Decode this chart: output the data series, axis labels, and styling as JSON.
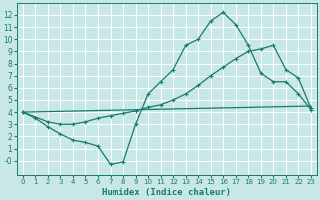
{
  "xlabel": "Humidex (Indice chaleur)",
  "background_color": "#c8e8e8",
  "grid_color": "#ffffff",
  "line_color": "#1a7a6e",
  "xlim": [
    -0.5,
    23.5
  ],
  "ylim": [
    -1.2,
    13
  ],
  "yticks": [
    0,
    1,
    2,
    3,
    4,
    5,
    6,
    7,
    8,
    9,
    10,
    11,
    12
  ],
  "ytick_labels": [
    "-0",
    "1",
    "2",
    "3",
    "4",
    "5",
    "6",
    "7",
    "8",
    "9",
    "10",
    "11",
    "12"
  ],
  "xticks": [
    0,
    1,
    2,
    3,
    4,
    5,
    6,
    7,
    8,
    9,
    10,
    11,
    12,
    13,
    14,
    15,
    16,
    17,
    18,
    19,
    20,
    21,
    22,
    23
  ],
  "line1_x": [
    0,
    1,
    2,
    3,
    4,
    5,
    6,
    7,
    8,
    9,
    10,
    11,
    12,
    13,
    14,
    15,
    16,
    17,
    18,
    19,
    20,
    21,
    22,
    23
  ],
  "line1_y": [
    4.0,
    3.5,
    2.8,
    2.2,
    1.7,
    1.5,
    1.2,
    -0.3,
    -0.1,
    3.0,
    5.5,
    6.5,
    7.5,
    9.5,
    10.0,
    11.5,
    12.2,
    11.2,
    9.5,
    7.2,
    6.5,
    6.5,
    5.5,
    4.2
  ],
  "line2_x": [
    0,
    2,
    3,
    4,
    5,
    6,
    7,
    8,
    9,
    10,
    11,
    12,
    13,
    14,
    15,
    16,
    17,
    18,
    19,
    20,
    21,
    22,
    23
  ],
  "line2_y": [
    4.0,
    3.2,
    3.0,
    3.0,
    3.2,
    3.5,
    3.7,
    3.9,
    4.1,
    4.4,
    4.6,
    5.0,
    5.5,
    6.2,
    7.0,
    7.7,
    8.4,
    9.0,
    9.2,
    9.5,
    7.5,
    6.8,
    4.3
  ],
  "line3_x": [
    0,
    23
  ],
  "line3_y": [
    4.0,
    4.5
  ],
  "marker": "+",
  "marker_size": 3,
  "linewidth": 0.9
}
